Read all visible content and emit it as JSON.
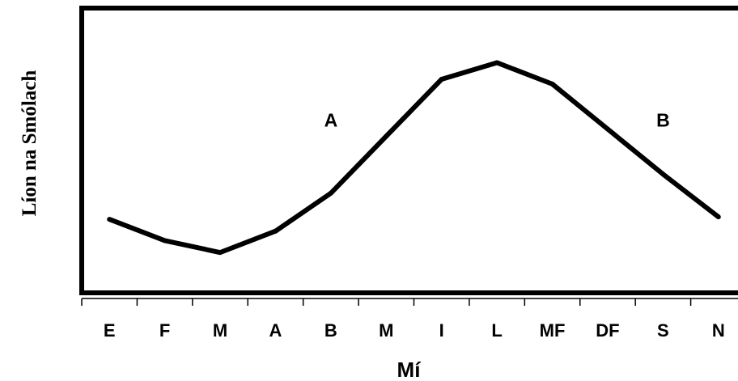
{
  "chart_data": {
    "type": "line",
    "title": "",
    "xlabel": "Mí",
    "ylabel": "Líon na Smólach",
    "categories": [
      "E",
      "F",
      "M",
      "A",
      "B",
      "M",
      "I",
      "L",
      "MF",
      "DF",
      "S",
      "N"
    ],
    "series": [
      {
        "values": [
          3.1,
          2.2,
          1.7,
          2.6,
          4.2,
          6.6,
          9.0,
          9.7,
          8.8,
          6.9,
          5.0,
          3.2
        ]
      }
    ],
    "ylim": [
      0,
      12
    ],
    "y_ticks_shown": false,
    "grid": false,
    "legend": "none",
    "annotations": [
      {
        "text": "A",
        "x": 4,
        "y": 7
      },
      {
        "text": "B",
        "x": 10,
        "y": 7
      }
    ],
    "colors": {
      "line": "#000000",
      "axis": "#000000",
      "background": "#ffffff"
    }
  }
}
